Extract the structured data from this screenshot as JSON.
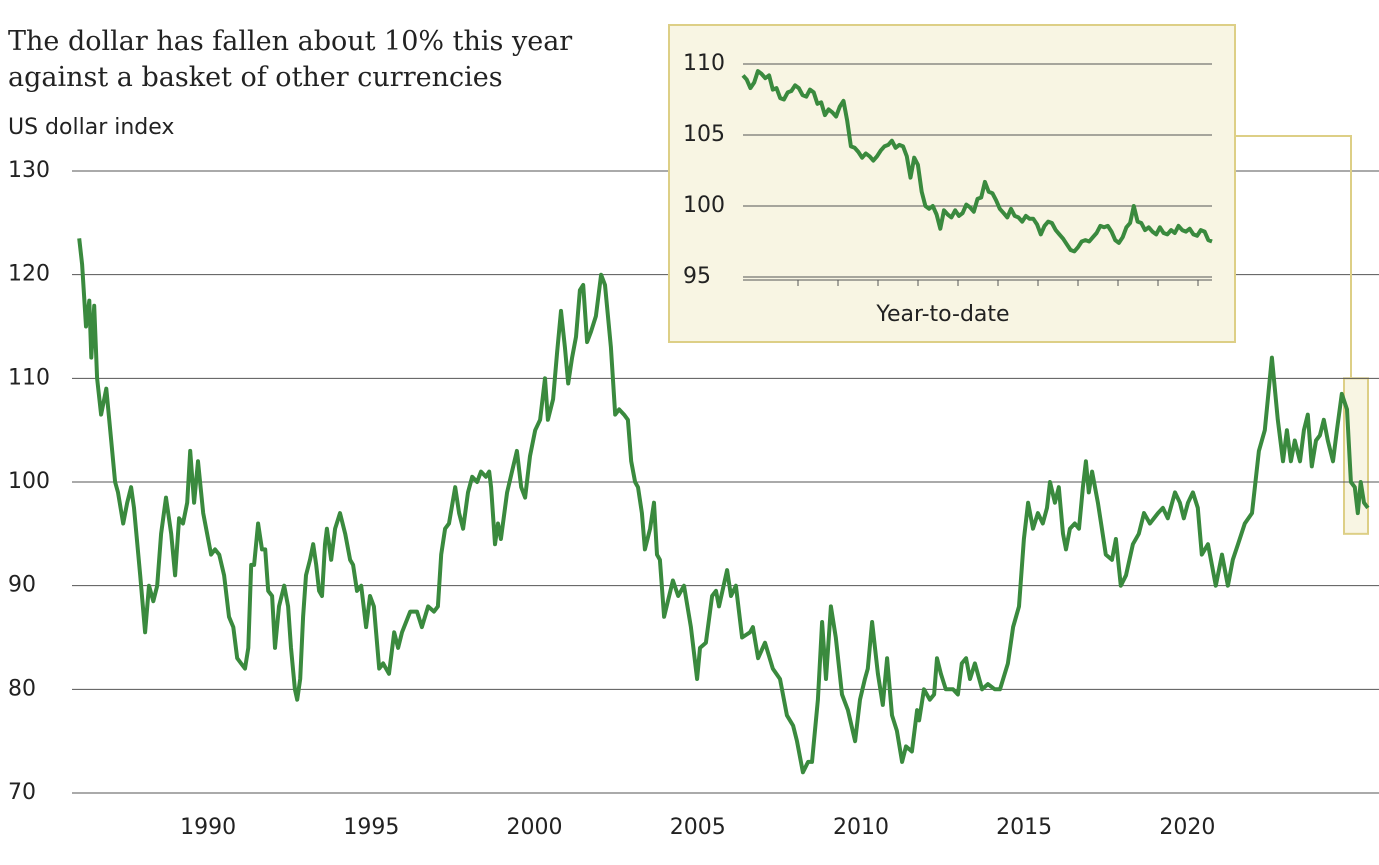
{
  "chart_data": [
    {
      "type": "line",
      "title": "The dollar has fallen about 10% this year against a basket of other currencies",
      "y_label": "US dollar index",
      "color": "#3a8a3e",
      "grid": true,
      "xlim": [
        1985.83,
        2025.87
      ],
      "xticks": [
        1990,
        1995,
        2000,
        2005,
        2010,
        2015,
        2020
      ],
      "ylim": [
        70,
        130
      ],
      "yticks": [
        70,
        80,
        90,
        100,
        110,
        120,
        130
      ],
      "x": [
        1986.05,
        1986.14,
        1986.26,
        1986.36,
        1986.42,
        1986.51,
        1986.6,
        1986.72,
        1986.88,
        1987.03,
        1987.15,
        1987.24,
        1987.4,
        1987.52,
        1987.64,
        1987.73,
        1987.92,
        1988.07,
        1988.19,
        1988.32,
        1988.44,
        1988.56,
        1988.71,
        1988.87,
        1988.99,
        1989.11,
        1989.23,
        1989.36,
        1989.45,
        1989.57,
        1989.69,
        1989.85,
        1990.09,
        1990.21,
        1990.34,
        1990.49,
        1990.64,
        1990.77,
        1990.89,
        1991.01,
        1991.13,
        1991.23,
        1991.32,
        1991.41,
        1991.53,
        1991.65,
        1991.75,
        1991.84,
        1991.96,
        1992.05,
        1992.17,
        1992.33,
        1992.45,
        1992.54,
        1992.66,
        1992.73,
        1992.82,
        1992.91,
        1993.0,
        1993.12,
        1993.22,
        1993.31,
        1993.4,
        1993.49,
        1993.58,
        1993.64,
        1993.77,
        1993.89,
        1994.04,
        1994.2,
        1994.35,
        1994.44,
        1994.56,
        1994.69,
        1994.84,
        1994.96,
        1995.08,
        1995.24,
        1995.36,
        1995.54,
        1995.7,
        1995.82,
        1995.94,
        1996.19,
        1996.4,
        1996.55,
        1996.74,
        1996.92,
        1997.04,
        1997.14,
        1997.26,
        1997.38,
        1997.57,
        1997.69,
        1997.81,
        1997.96,
        1998.09,
        1998.24,
        1998.36,
        1998.51,
        1998.61,
        1998.67,
        1998.79,
        1998.88,
        1998.97,
        1999.16,
        1999.31,
        1999.46,
        1999.59,
        1999.71,
        1999.86,
        2000.02,
        2000.17,
        2000.32,
        2000.41,
        2000.57,
        2000.69,
        2000.81,
        2000.93,
        2001.03,
        2001.15,
        2001.27,
        2001.39,
        2001.49,
        2001.61,
        2001.73,
        2001.88,
        2002.04,
        2002.16,
        2002.34,
        2002.47,
        2002.59,
        2002.74,
        2002.86,
        2002.96,
        2003.08,
        2003.17,
        2003.29,
        2003.38,
        2003.54,
        2003.66,
        2003.75,
        2003.84,
        2003.97,
        2004.24,
        2004.4,
        2004.58,
        2004.79,
        2004.98,
        2005.07,
        2005.25,
        2005.44,
        2005.56,
        2005.65,
        2005.9,
        2006.02,
        2006.17,
        2006.36,
        2006.6,
        2006.69,
        2006.85,
        2007.06,
        2007.3,
        2007.52,
        2007.73,
        2007.92,
        2008.04,
        2008.22,
        2008.38,
        2008.5,
        2008.68,
        2008.81,
        2008.93,
        2009.08,
        2009.23,
        2009.42,
        2009.6,
        2009.82,
        2009.97,
        2010.12,
        2010.21,
        2010.34,
        2010.52,
        2010.67,
        2010.8,
        2010.95,
        2011.1,
        2011.26,
        2011.38,
        2011.56,
        2011.72,
        2011.78,
        2011.93,
        2012.11,
        2012.24,
        2012.33,
        2012.45,
        2012.6,
        2012.82,
        2012.97,
        2013.09,
        2013.22,
        2013.34,
        2013.49,
        2013.71,
        2013.89,
        2014.1,
        2014.26,
        2014.5,
        2014.66,
        2014.84,
        2014.99,
        2015.12,
        2015.27,
        2015.42,
        2015.57,
        2015.7,
        2015.79,
        2015.94,
        2016.06,
        2016.19,
        2016.28,
        2016.4,
        2016.55,
        2016.68,
        2016.8,
        2016.89,
        2016.98,
        2017.08,
        2017.26,
        2017.38,
        2017.5,
        2017.69,
        2017.81,
        2017.96,
        2018.12,
        2018.33,
        2018.51,
        2018.67,
        2018.85,
        2019.1,
        2019.25,
        2019.4,
        2019.62,
        2019.77,
        2019.89,
        2020.02,
        2020.17,
        2020.32,
        2020.44,
        2020.63,
        2020.75,
        2020.87,
        2021.06,
        2021.24,
        2021.39,
        2021.55,
        2021.76,
        2021.98,
        2022.19,
        2022.37,
        2022.59,
        2022.77,
        2022.93,
        2023.05,
        2023.17,
        2023.29,
        2023.45,
        2023.57,
        2023.69,
        2023.81,
        2023.94,
        2024.06,
        2024.18,
        2024.3,
        2024.46,
        2024.58,
        2024.73,
        2024.89,
        2025.01,
        2025.13,
        2025.22,
        2025.31,
        2025.41,
        2025.53
      ],
      "values": [
        123.5,
        121,
        115,
        117.5,
        112,
        117,
        110,
        106.5,
        109,
        104,
        100,
        99,
        96,
        98,
        99.5,
        97.5,
        91,
        85.5,
        90,
        88.5,
        90,
        95,
        98.5,
        95,
        91,
        96.5,
        96,
        98,
        103,
        98,
        102,
        97,
        93,
        93.5,
        93,
        91,
        87,
        86,
        83,
        82.5,
        82,
        84,
        92,
        92,
        96,
        93.5,
        93.5,
        89.5,
        89,
        84,
        88,
        90,
        88,
        84,
        80,
        79,
        81,
        87,
        91,
        92.5,
        94,
        92,
        89.5,
        89,
        94,
        95.5,
        92.5,
        95.5,
        97,
        95,
        92.5,
        92,
        89.5,
        90,
        86,
        89,
        88,
        82,
        82.5,
        81.5,
        85.5,
        84,
        85.5,
        87.5,
        87.5,
        86,
        88,
        87.5,
        88,
        93,
        95.5,
        96,
        99.5,
        97,
        95.5,
        99,
        100.5,
        100,
        101,
        100.5,
        101,
        99.5,
        94,
        96,
        94.5,
        99,
        101,
        103,
        99.5,
        98.5,
        102.5,
        105,
        106,
        110,
        106,
        108,
        112.5,
        116.5,
        113,
        109.5,
        112,
        114,
        118.5,
        119,
        113.5,
        114.5,
        116,
        120,
        119,
        113,
        106.5,
        107,
        106.5,
        106,
        102,
        100,
        99.5,
        97,
        93.5,
        95.5,
        98,
        93,
        92.5,
        87,
        90.5,
        89,
        90,
        86,
        81,
        84,
        84.5,
        89,
        89.5,
        88,
        91.5,
        89,
        90,
        85,
        85.5,
        86,
        83,
        84.5,
        82,
        81,
        77.5,
        76.5,
        75,
        72,
        73,
        73,
        79,
        86.5,
        81,
        88,
        85,
        79.5,
        78,
        75,
        79,
        81,
        82,
        86.5,
        81.5,
        78.5,
        83,
        77.5,
        76,
        73,
        74.5,
        74,
        78,
        77,
        80,
        79,
        79.5,
        83,
        81.5,
        80,
        80,
        79.5,
        82.5,
        83,
        81,
        82.5,
        80,
        80.5,
        80,
        80,
        82.5,
        86,
        88,
        94.5,
        98,
        95.5,
        97,
        96,
        97.5,
        100,
        98,
        99.5,
        95,
        93.5,
        95.5,
        96,
        95.5,
        99.5,
        102,
        99,
        101,
        98,
        95.5,
        93,
        92.5,
        94.5,
        90,
        91,
        94,
        95,
        97,
        96,
        97,
        97.5,
        96.5,
        99,
        98,
        96.5,
        98,
        99,
        97.5,
        93,
        94,
        92,
        90,
        93,
        90,
        92.5,
        94,
        96,
        97,
        103,
        105,
        112,
        106,
        102,
        105,
        102,
        104,
        102,
        105,
        106.5,
        101.5,
        104,
        104.5,
        106,
        104,
        102,
        105,
        108.5,
        107,
        100,
        99.5,
        97,
        100,
        98,
        97.5
      ]
    },
    {
      "type": "line",
      "x_label": "Year-to-date",
      "color": "#3a8a3e",
      "grid": true,
      "ylim": [
        95,
        110
      ],
      "yticks": [
        95,
        100,
        105,
        110
      ],
      "values": [
        109.2,
        108.9,
        108.3,
        108.7,
        109.5,
        109.3,
        109.0,
        109.2,
        108.2,
        108.3,
        107.6,
        107.5,
        108.0,
        108.1,
        108.5,
        108.3,
        107.8,
        107.7,
        108.2,
        108.0,
        107.2,
        107.3,
        106.4,
        106.8,
        106.6,
        106.3,
        107.0,
        107.4,
        106.0,
        104.2,
        104.1,
        103.8,
        103.4,
        103.7,
        103.5,
        103.2,
        103.5,
        103.9,
        104.2,
        104.3,
        104.6,
        104.1,
        104.3,
        104.2,
        103.5,
        102.0,
        103.4,
        102.9,
        101.0,
        100.0,
        99.8,
        100.0,
        99.4,
        98.4,
        99.7,
        99.4,
        99.2,
        99.7,
        99.3,
        99.5,
        100.1,
        99.9,
        99.6,
        100.5,
        100.6,
        101.7,
        101.0,
        100.9,
        100.4,
        99.8,
        99.5,
        99.2,
        99.8,
        99.3,
        99.2,
        98.9,
        99.3,
        99.1,
        99.1,
        98.7,
        98.0,
        98.6,
        98.9,
        98.8,
        98.3,
        98.0,
        97.7,
        97.3,
        96.9,
        96.8,
        97.1,
        97.5,
        97.6,
        97.5,
        97.8,
        98.1,
        98.6,
        98.5,
        98.6,
        98.2,
        97.6,
        97.4,
        97.8,
        98.5,
        98.8,
        100.0,
        98.9,
        98.8,
        98.3,
        98.5,
        98.2,
        98.0,
        98.5,
        98.1,
        98.0,
        98.3,
        98.1,
        98.6,
        98.3,
        98.2,
        98.4,
        98.0,
        97.9,
        98.3,
        98.2,
        97.6,
        97.5
      ]
    }
  ]
}
